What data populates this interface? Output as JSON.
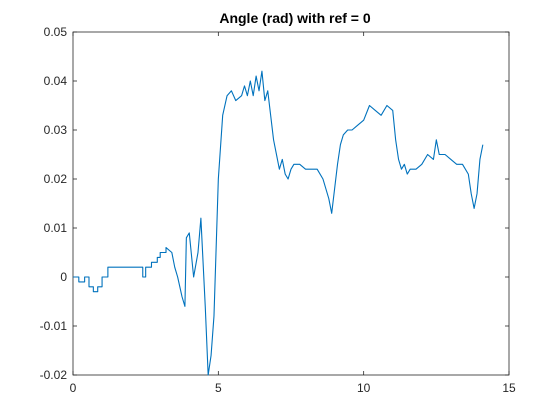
{
  "chart_data": {
    "type": "line",
    "title": "Angle (rad) with ref = 0",
    "xlabel": "",
    "ylabel": "",
    "xlim": [
      0,
      15
    ],
    "ylim": [
      -0.02,
      0.05
    ],
    "xticks": [
      0,
      5,
      10,
      15
    ],
    "yticks": [
      -0.02,
      -0.01,
      0,
      0.01,
      0.02,
      0.03,
      0.04,
      0.05
    ],
    "xtick_labels": [
      "0",
      "5",
      "10",
      "15"
    ],
    "ytick_labels": [
      "-0.02",
      "-0.01",
      "0",
      "0.01",
      "0.02",
      "0.03",
      "0.04",
      "0.05"
    ],
    "grid": false,
    "legend": "none",
    "line_color": "#0072BD",
    "series": [
      {
        "x": [
          0.0,
          0.2,
          0.2,
          0.4,
          0.4,
          0.55,
          0.55,
          0.7,
          0.7,
          0.85,
          0.85,
          1.0,
          1.0,
          1.2,
          1.2,
          2.4,
          2.4,
          2.5,
          2.5,
          2.7,
          2.7,
          2.9,
          2.9,
          3.0,
          3.0,
          3.2,
          3.2,
          3.4,
          3.5,
          3.6,
          3.75,
          3.85,
          3.9,
          4.0,
          4.05,
          4.15,
          4.3,
          4.4,
          4.55,
          4.65,
          4.75,
          4.85,
          5.0,
          5.15,
          5.3,
          5.45,
          5.6,
          5.8,
          5.9,
          6.0,
          6.1,
          6.2,
          6.3,
          6.4,
          6.5,
          6.6,
          6.7,
          6.8,
          6.9,
          7.0,
          7.1,
          7.2,
          7.3,
          7.4,
          7.5,
          7.6,
          7.7,
          7.8,
          8.0,
          8.2,
          8.4,
          8.6,
          8.8,
          8.9,
          9.0,
          9.1,
          9.2,
          9.3,
          9.45,
          9.6,
          9.8,
          10.0,
          10.2,
          10.4,
          10.6,
          10.8,
          11.0,
          11.1,
          11.2,
          11.3,
          11.4,
          11.5,
          11.6,
          11.8,
          12.0,
          12.2,
          12.4,
          12.5,
          12.6,
          12.8,
          13.0,
          13.2,
          13.4,
          13.6,
          13.7,
          13.8,
          13.9,
          14.0,
          14.1
        ],
        "y": [
          0.0,
          0.0,
          -0.001,
          -0.001,
          0.0,
          0.0,
          -0.002,
          -0.002,
          -0.003,
          -0.003,
          -0.002,
          -0.002,
          0.0,
          0.0,
          0.002,
          0.002,
          0.0,
          0.0,
          0.002,
          0.002,
          0.003,
          0.003,
          0.004,
          0.004,
          0.005,
          0.005,
          0.006,
          0.005,
          0.002,
          0.0,
          -0.004,
          -0.006,
          0.008,
          0.009,
          0.006,
          0.0,
          0.005,
          0.012,
          -0.006,
          -0.02,
          -0.016,
          -0.008,
          0.02,
          0.033,
          0.037,
          0.038,
          0.036,
          0.037,
          0.039,
          0.037,
          0.04,
          0.037,
          0.041,
          0.038,
          0.042,
          0.036,
          0.038,
          0.033,
          0.028,
          0.025,
          0.022,
          0.024,
          0.021,
          0.02,
          0.022,
          0.023,
          0.023,
          0.023,
          0.022,
          0.022,
          0.022,
          0.02,
          0.016,
          0.013,
          0.018,
          0.023,
          0.027,
          0.029,
          0.03,
          0.03,
          0.031,
          0.032,
          0.035,
          0.034,
          0.033,
          0.035,
          0.034,
          0.028,
          0.024,
          0.022,
          0.023,
          0.021,
          0.022,
          0.022,
          0.023,
          0.025,
          0.024,
          0.028,
          0.025,
          0.025,
          0.024,
          0.023,
          0.023,
          0.021,
          0.017,
          0.014,
          0.017,
          0.024,
          0.027
        ]
      }
    ]
  }
}
